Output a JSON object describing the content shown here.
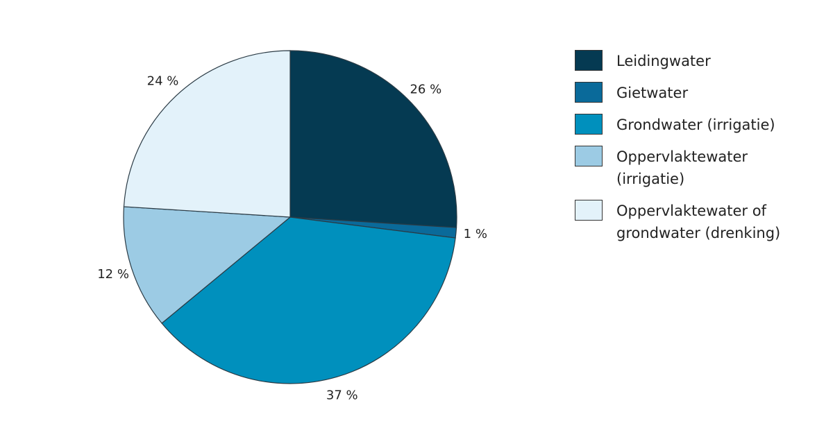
{
  "chart_data": {
    "type": "pie",
    "categories": [
      "Leidingwater",
      "Gietwater",
      "Grondwater (irrigatie)",
      "Oppervlaktewater (irrigatie)",
      "Oppervlaktewater of grondwater (drenking)"
    ],
    "values": [
      26,
      1,
      37,
      12,
      24
    ],
    "value_labels": [
      "26 %",
      "1 %",
      "37 %",
      "12 %",
      "24 %"
    ],
    "colors": [
      "#053a52",
      "#0a6a9a",
      "#0090bd",
      "#9ccbe4",
      "#e3f2fa"
    ]
  }
}
